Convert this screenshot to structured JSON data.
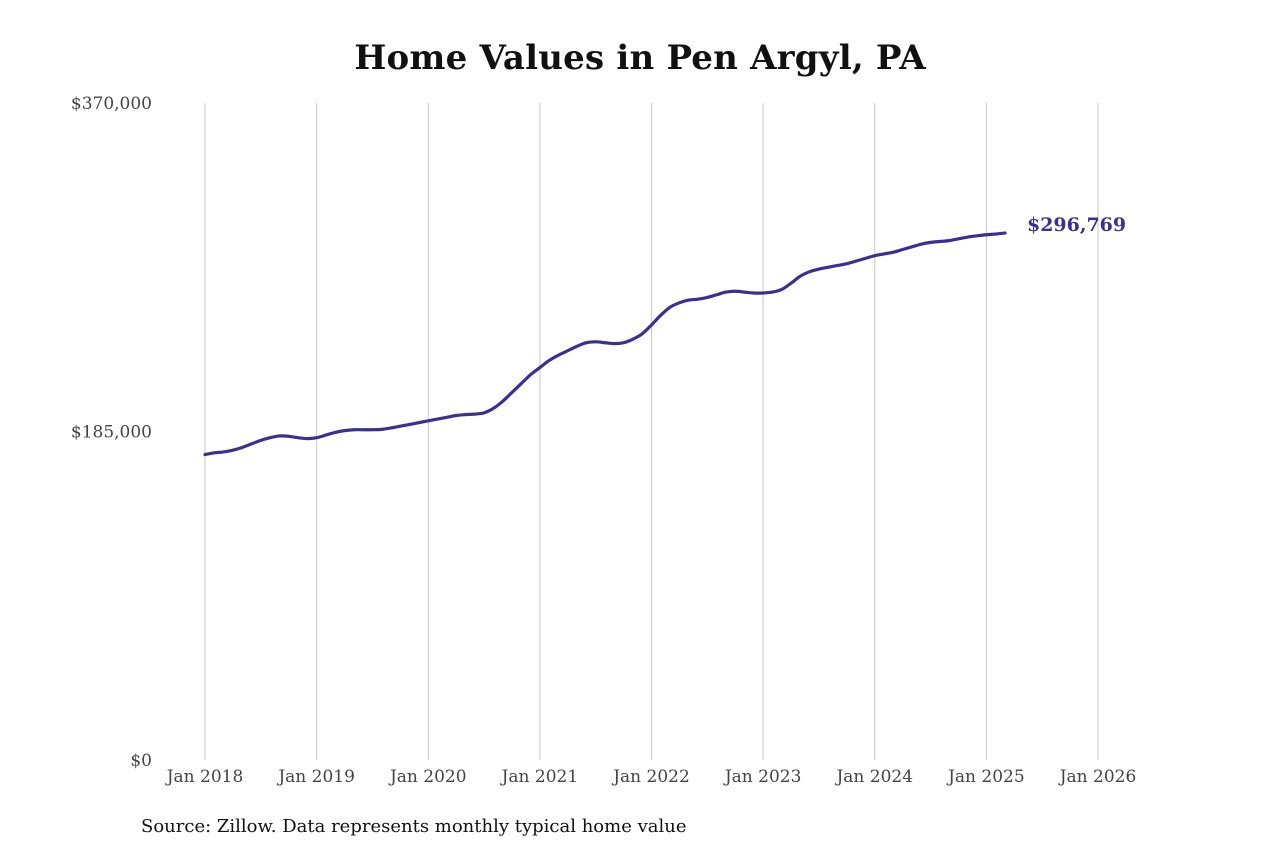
{
  "chart_data": {
    "type": "line",
    "title": "Home Values in Pen Argyl, PA",
    "xlabel": "",
    "ylabel": "",
    "ylim": [
      0,
      370000
    ],
    "yticks": [
      0,
      185000,
      370000
    ],
    "ytick_labels": [
      "$0",
      "$185,000",
      "$370,000"
    ],
    "xticks": [
      "2018-01",
      "2019-01",
      "2020-01",
      "2021-01",
      "2022-01",
      "2023-01",
      "2024-01",
      "2025-01",
      "2026-01"
    ],
    "xtick_labels": [
      "Jan 2018",
      "Jan 2019",
      "Jan 2020",
      "Jan 2021",
      "Jan 2022",
      "Jan 2023",
      "Jan 2024",
      "Jan 2025",
      "Jan 2026"
    ],
    "xlim": [
      "2018-01",
      "2026-01"
    ],
    "grid": "vertical",
    "line_color": "#3b3091",
    "end_label": "$296,769",
    "series": [
      {
        "points": [
          [
            "2018-01",
            172000
          ],
          [
            "2018-02",
            173000
          ],
          [
            "2018-03",
            173500
          ],
          [
            "2018-04",
            174500
          ],
          [
            "2018-05",
            176000
          ],
          [
            "2018-06",
            178000
          ],
          [
            "2018-07",
            180000
          ],
          [
            "2018-08",
            181500
          ],
          [
            "2018-09",
            182500
          ],
          [
            "2018-10",
            182300
          ],
          [
            "2018-11",
            181500
          ],
          [
            "2018-12",
            181000
          ],
          [
            "2019-01",
            181500
          ],
          [
            "2019-02",
            183000
          ],
          [
            "2019-03",
            184500
          ],
          [
            "2019-04",
            185500
          ],
          [
            "2019-05",
            186000
          ],
          [
            "2019-06",
            186000
          ],
          [
            "2019-07",
            186000
          ],
          [
            "2019-08",
            186200
          ],
          [
            "2019-09",
            187000
          ],
          [
            "2019-10",
            188000
          ],
          [
            "2019-11",
            189000
          ],
          [
            "2019-12",
            190000
          ],
          [
            "2020-01",
            191000
          ],
          [
            "2020-02",
            192000
          ],
          [
            "2020-03",
            193000
          ],
          [
            "2020-04",
            194000
          ],
          [
            "2020-05",
            194500
          ],
          [
            "2020-06",
            194800
          ],
          [
            "2020-07",
            195500
          ],
          [
            "2020-08",
            198000
          ],
          [
            "2020-09",
            202000
          ],
          [
            "2020-10",
            207000
          ],
          [
            "2020-11",
            212000
          ],
          [
            "2020-12",
            217000
          ],
          [
            "2021-01",
            221000
          ],
          [
            "2021-02",
            225000
          ],
          [
            "2021-03",
            228000
          ],
          [
            "2021-04",
            230500
          ],
          [
            "2021-05",
            233000
          ],
          [
            "2021-06",
            235000
          ],
          [
            "2021-07",
            235500
          ],
          [
            "2021-08",
            235000
          ],
          [
            "2021-09",
            234500
          ],
          [
            "2021-10",
            235000
          ],
          [
            "2021-11",
            237000
          ],
          [
            "2021-12",
            240000
          ],
          [
            "2022-01",
            245000
          ],
          [
            "2022-02",
            250500
          ],
          [
            "2022-03",
            255000
          ],
          [
            "2022-04",
            257500
          ],
          [
            "2022-05",
            259000
          ],
          [
            "2022-06",
            259500
          ],
          [
            "2022-07",
            260500
          ],
          [
            "2022-08",
            262000
          ],
          [
            "2022-09",
            263500
          ],
          [
            "2022-10",
            264000
          ],
          [
            "2022-11",
            263500
          ],
          [
            "2022-12",
            263000
          ],
          [
            "2023-01",
            263000
          ],
          [
            "2023-02",
            263500
          ],
          [
            "2023-03",
            265000
          ],
          [
            "2023-04",
            268500
          ],
          [
            "2023-05",
            272500
          ],
          [
            "2023-06",
            275000
          ],
          [
            "2023-07",
            276500
          ],
          [
            "2023-08",
            277500
          ],
          [
            "2023-09",
            278500
          ],
          [
            "2023-10",
            279500
          ],
          [
            "2023-11",
            281000
          ],
          [
            "2023-12",
            282500
          ],
          [
            "2024-01",
            284000
          ],
          [
            "2024-02",
            285000
          ],
          [
            "2024-03",
            286000
          ],
          [
            "2024-04",
            287500
          ],
          [
            "2024-05",
            289000
          ],
          [
            "2024-06",
            290500
          ],
          [
            "2024-07",
            291500
          ],
          [
            "2024-08",
            292000
          ],
          [
            "2024-09",
            292500
          ],
          [
            "2024-10",
            293500
          ],
          [
            "2024-11",
            294500
          ],
          [
            "2024-12",
            295200
          ],
          [
            "2025-01",
            295800
          ],
          [
            "2025-02",
            296200
          ],
          [
            "2025-03",
            296769
          ]
        ]
      }
    ]
  },
  "source": "Source: Zillow. Data represents monthly typical home value"
}
